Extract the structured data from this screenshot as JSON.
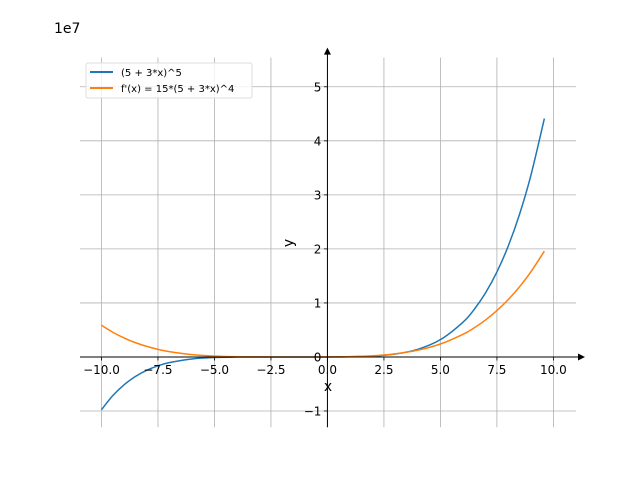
{
  "chart_data": {
    "type": "line",
    "title": "",
    "xlabel": "x",
    "ylabel": "y",
    "y_offset_label": "1e7",
    "xlim": [
      -10.95,
      11.0
    ],
    "ylim": [
      -13000000.0,
      55400000.0
    ],
    "grid": true,
    "legend_placement": "top-left",
    "x_ticks": [
      -10,
      -7.5,
      -5,
      -2.5,
      0,
      2.5,
      5,
      7.5,
      10
    ],
    "x_tick_labels": [
      "−10.0",
      "−7.5",
      "−5.0",
      "−2.5",
      "0.0",
      "2.5",
      "5.0",
      "7.5",
      "10.0"
    ],
    "y_ticks": [
      -10000000.0,
      0,
      10000000.0,
      20000000.0,
      30000000.0,
      40000000.0,
      50000000.0
    ],
    "y_tick_labels": [
      "−1",
      "0",
      "1",
      "2",
      "3",
      "4",
      "5"
    ],
    "x": [
      -10,
      -9.5,
      -9,
      -8.5,
      -8,
      -7.5,
      -7,
      -6,
      -5,
      -4,
      -3,
      -2,
      -1,
      0,
      1,
      2,
      3,
      4,
      5,
      6,
      6.5,
      7,
      7.5,
      8,
      8.5,
      9,
      9.6
    ],
    "series": [
      {
        "name": "(5 + 3*x)^5",
        "color": "#1f77b4",
        "values": [
          -9765625,
          -7167031,
          -5153632,
          -3620506,
          -2476099,
          -1641309,
          -1048576,
          -371293,
          -100000,
          -16807,
          -1024,
          -1,
          32,
          3125,
          32768,
          161051,
          537824,
          1419857,
          3200000,
          6436343,
          8827351,
          11881376,
          15727637,
          20511149,
          26393634,
          33554432,
          44114719
        ]
      },
      {
        "name": "f'(x) = 15*(5 + 3*x)^4",
        "color": "#ff7f0e",
        "values": [
          5859375,
          4574701,
          3513840,
          2649151,
          1954815,
          1406836,
          983040,
          428415,
          150000,
          36015,
          3840,
          15,
          240,
          9375,
          61440,
          219615,
          576240,
          1252815,
          2400000,
          4197615,
          5404501,
          6854640,
          8578711,
          10609215,
          12980476,
          15728640,
          19577538
        ]
      }
    ]
  }
}
